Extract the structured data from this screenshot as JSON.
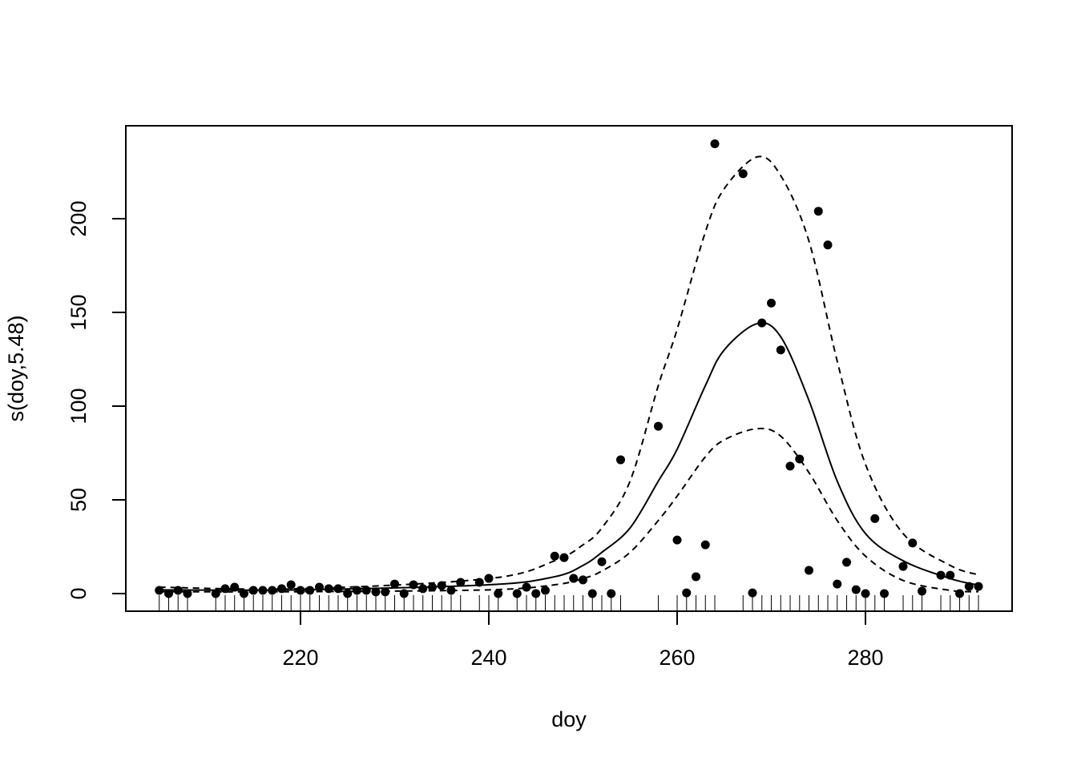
{
  "chart_data": {
    "type": "scatter",
    "xlabel": "doy",
    "ylabel": "s(doy,5.48)",
    "xlim": [
      201.45,
      295.57
    ],
    "ylim": [
      -9.4,
      249.6
    ],
    "xticks": [
      220,
      240,
      260,
      280
    ],
    "yticks": [
      0,
      50,
      100,
      150,
      200
    ],
    "color": "#000000",
    "rug": true,
    "x": [
      205,
      206,
      207,
      208,
      211,
      212,
      213,
      214,
      215,
      216,
      217,
      218,
      219,
      220,
      221,
      222,
      223,
      224,
      225,
      226,
      227,
      228,
      229,
      230,
      231,
      232,
      233,
      234,
      235,
      236,
      237,
      239,
      240,
      241,
      243,
      244,
      245,
      246,
      247,
      248,
      249,
      250,
      251,
      252,
      253,
      254,
      258,
      260,
      261,
      262,
      263,
      264,
      267,
      268,
      269,
      270,
      271,
      272,
      273,
      274,
      275,
      276,
      277,
      278,
      279,
      280,
      281,
      282,
      284,
      285,
      286,
      288,
      289,
      290,
      291,
      292
    ],
    "values": [
      1.7,
      0,
      1.7,
      0,
      0,
      2.6,
      3.4,
      0,
      1.7,
      1.7,
      1.7,
      2.6,
      4.7,
      1.7,
      1.7,
      3.4,
      2.6,
      2.6,
      0,
      1.7,
      1.7,
      0.9,
      0.9,
      5.1,
      0,
      4.7,
      2.6,
      3.4,
      4.3,
      1.7,
      6,
      6,
      8.1,
      0,
      0,
      3.4,
      0,
      1.7,
      20,
      19.2,
      8.1,
      7.3,
      0,
      17,
      0,
      71.4,
      89.3,
      28.6,
      0.4,
      9,
      26,
      240,
      224,
      0.4,
      144.4,
      155,
      130,
      68,
      71.8,
      12.4,
      204,
      186,
      5.1,
      16.7,
      2.1,
      0,
      40,
      0,
      14.5,
      27,
      1.3,
      9.8,
      9.8,
      0,
      3.8,
      3.8
    ],
    "fit": {
      "x": [
        205,
        220,
        240,
        247,
        250,
        252,
        255,
        258,
        260,
        263,
        265,
        268.5,
        271,
        274,
        277,
        280,
        284,
        289,
        292
      ],
      "lines": [
        {
          "dashed": false,
          "values": [
            2,
            2,
            4.7,
            9,
            15,
            22,
            35,
            60,
            77,
            111,
            130,
            144,
            137,
            103,
            60,
            32,
            17.5,
            8,
            4.5
          ]
        },
        {
          "dashed": true,
          "values": [
            3.4,
            2.6,
            8,
            17.5,
            26,
            35,
            60,
            111,
            141,
            193,
            216,
            233,
            223,
            188,
            124,
            69,
            32,
            15,
            10
          ]
        },
        {
          "dashed": true,
          "values": [
            1,
            1,
            2,
            4.7,
            8,
            12,
            22,
            39,
            52,
            73,
            82,
            88,
            84,
            64.5,
            39,
            20,
            7,
            1.7,
            1
          ]
        }
      ]
    }
  }
}
